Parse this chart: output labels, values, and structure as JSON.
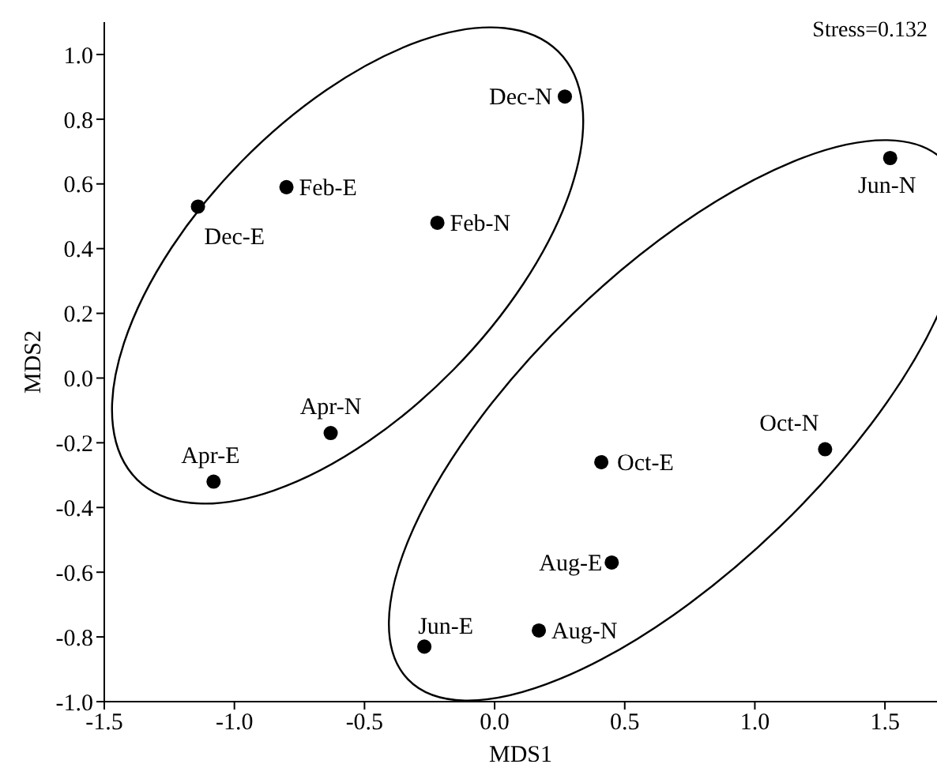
{
  "chart_data": {
    "type": "scatter",
    "xlabel": "MDS1",
    "ylabel": "MDS2",
    "x": [
      -1.14,
      -0.8,
      -0.22,
      -0.63,
      -1.08,
      0.27,
      1.52,
      1.27,
      0.41,
      0.45,
      0.17,
      -0.27
    ],
    "series": [
      {
        "color": "#000000",
        "values": [
          0.53,
          0.59,
          0.48,
          -0.17,
          -0.32,
          0.87,
          0.68,
          -0.22,
          -0.26,
          -0.57,
          -0.78,
          -0.83
        ]
      }
    ],
    "xlim": [
      -1.5,
      1.7
    ],
    "xticks": [
      {
        "value": -1.5,
        "label": "-1.5"
      },
      {
        "value": -1,
        "label": "-1.0"
      },
      {
        "value": -0.5,
        "label": "-0.5"
      },
      {
        "value": 0,
        "label": "0.0"
      },
      {
        "value": 0.5,
        "label": "0.5"
      },
      {
        "value": 1,
        "label": "1.0"
      },
      {
        "value": 1.5,
        "label": "1.5"
      }
    ],
    "ylim": [
      -1,
      1.1
    ],
    "yticks": [
      {
        "value": -1,
        "label": "-1.0"
      },
      {
        "value": -0.8,
        "label": "-0.8"
      },
      {
        "value": -0.6,
        "label": "-0.6"
      },
      {
        "value": -0.4,
        "label": "-0.4"
      },
      {
        "value": -0.2,
        "label": "-0.2"
      },
      {
        "value": 0,
        "label": "0.0"
      },
      {
        "value": 0.2,
        "label": "0.2"
      },
      {
        "value": 0.4,
        "label": "0.4"
      },
      {
        "value": 0.6,
        "label": "0.6"
      },
      {
        "value": 0.8,
        "label": "0.8"
      },
      {
        "value": 1,
        "label": "1.0"
      }
    ],
    "marker": "circle",
    "annotations": [
      {
        "text": "Dec-E",
        "x": -1.14,
        "y": 0.53
      },
      {
        "text": "Feb-E",
        "x": -0.8,
        "y": 0.59
      },
      {
        "text": "Feb-N",
        "x": -0.22,
        "y": 0.48
      },
      {
        "text": "Apr-N",
        "x": -0.63,
        "y": -0.17
      },
      {
        "text": "Apr-E",
        "x": -1.08,
        "y": -0.32
      },
      {
        "text": "Dec-N",
        "x": 0.27,
        "y": 0.87
      },
      {
        "text": "Jun-N",
        "x": 1.52,
        "y": 0.68
      },
      {
        "text": "Oct-N",
        "x": 1.27,
        "y": -0.22
      },
      {
        "text": "Oct-E",
        "x": 0.41,
        "y": -0.26
      },
      {
        "text": "Aug-E",
        "x": 0.45,
        "y": -0.57
      },
      {
        "text": "Aug-N",
        "x": 0.17,
        "y": -0.78
      },
      {
        "text": "Jun-E",
        "x": -0.27,
        "y": -0.83
      },
      "Stress=0.132"
    ]
  }
}
